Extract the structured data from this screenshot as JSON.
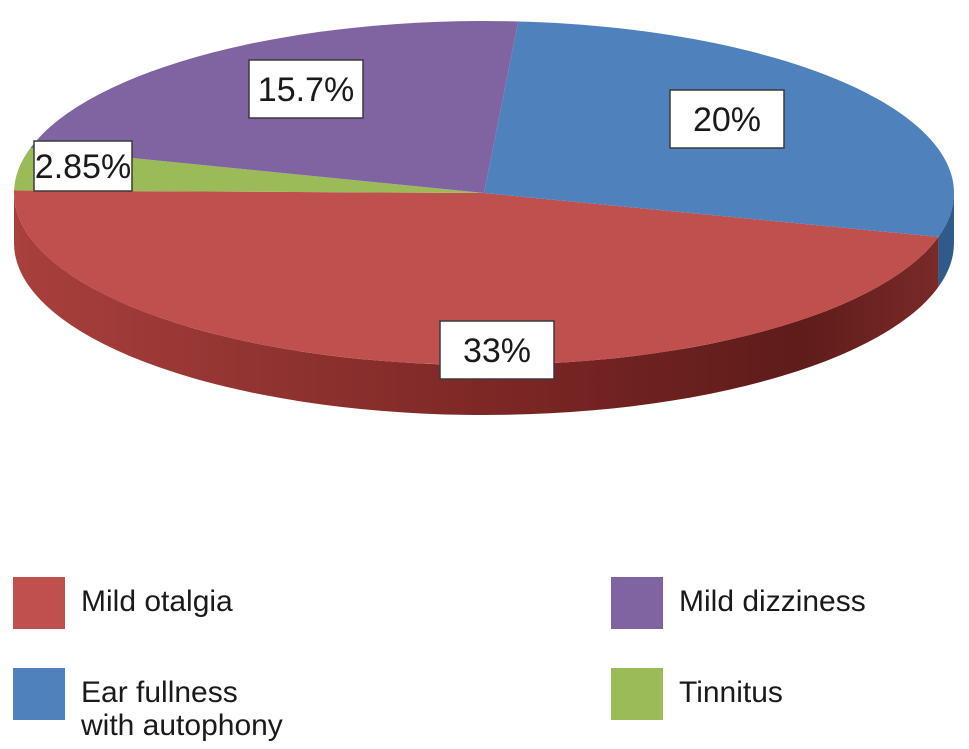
{
  "chart_data": {
    "type": "pie",
    "style": "3d-oval",
    "categories": [
      "Mild otalgia",
      "Ear fullness\nwith autophony",
      "Mild dizziness",
      "Tinnitus"
    ],
    "values": [
      33,
      20,
      15.7,
      2.85
    ],
    "data_labels": [
      "33%",
      "20%",
      "15.7%",
      "2.85%"
    ],
    "colors": [
      "#c0504d",
      "#4f81bd",
      "#8064a2",
      "#9bbb59"
    ],
    "side_colors": [
      "#8a2f2c",
      "#2f5a8a",
      "#5a4478",
      "#6e8a3a"
    ],
    "legend_position": "bottom"
  },
  "legend": {
    "items": [
      {
        "label": "Mild otalgia",
        "color": "#c0504d"
      },
      {
        "label": "Mild dizziness",
        "color": "#8064a2"
      },
      {
        "label": "Ear fullness\nwith autophony",
        "color": "#4f81bd"
      },
      {
        "label": "Tinnitus",
        "color": "#9bbb59"
      }
    ]
  }
}
